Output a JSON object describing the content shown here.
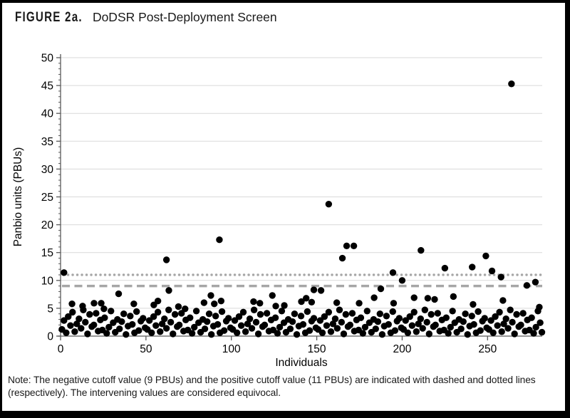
{
  "figure": {
    "label": "FIGURE 2a.",
    "title": "DoDSR Post-Deployment Screen"
  },
  "note": "Note: The negative cutoff value (9 PBUs) and the positive cutoff value (11 PBUs) are indicated with dashed and dotted lines (respectively). The intervening values are considered equivocal.",
  "colors": {
    "point": "#000000",
    "gridline": "#d9d9d9",
    "cutoff_lines": "#a6a6a6",
    "axis": "#595959",
    "text": "#000000"
  },
  "chart_data": {
    "type": "scatter",
    "title": "DoDSR Post-Deployment Screen",
    "xlabel": "Individuals",
    "ylabel": "Panbio units (PBUs)",
    "xlim": [
      0,
      282
    ],
    "ylim": [
      0,
      50
    ],
    "x_ticks": [
      0,
      50,
      100,
      150,
      200,
      250
    ],
    "y_ticks": [
      0,
      5,
      10,
      15,
      20,
      25,
      30,
      35,
      40,
      45,
      50
    ],
    "grid": "horizontal gridlines every 5 PBUs",
    "legend": "none",
    "reference_lines": [
      {
        "name": "negative-cutoff",
        "value": 9,
        "style": "dashed",
        "label": "negative cutoff (9 PBUs)"
      },
      {
        "name": "positive-cutoff",
        "value": 11,
        "style": "dotted",
        "label": "positive cutoff (11 PBUs)"
      }
    ],
    "points": [
      [
        2,
        11.4
      ],
      [
        34,
        7.6
      ],
      [
        62,
        13.7
      ],
      [
        63.4,
        8.2
      ],
      [
        88,
        7.3
      ],
      [
        93,
        17.3
      ],
      [
        124,
        7.3
      ],
      [
        143.8,
        6.8
      ],
      [
        147,
        6.1
      ],
      [
        148.3,
        8.3
      ],
      [
        152.5,
        8.2
      ],
      [
        157,
        23.7
      ],
      [
        165,
        14
      ],
      [
        167.5,
        16.2
      ],
      [
        171.7,
        16.2
      ],
      [
        183.6,
        6.9
      ],
      [
        187.5,
        8.5
      ],
      [
        194.6,
        11.4
      ],
      [
        200,
        10
      ],
      [
        207,
        6.9
      ],
      [
        211,
        15.4
      ],
      [
        215,
        6.8
      ],
      [
        219,
        6.6
      ],
      [
        225,
        12.2
      ],
      [
        230,
        7.1
      ],
      [
        241,
        12.4
      ],
      [
        249,
        14.4
      ],
      [
        252.6,
        11.7
      ],
      [
        257.9,
        10.6
      ],
      [
        264,
        45.3
      ],
      [
        273,
        9.1
      ],
      [
        278,
        9.7
      ],
      [
        6.7,
        5.8
      ],
      [
        12.9,
        5.4
      ],
      [
        19.6,
        5.9
      ],
      [
        23.8,
        5.9
      ],
      [
        25.4,
        4.9
      ],
      [
        42.9,
        5.8
      ],
      [
        54.6,
        5.6
      ],
      [
        57,
        6.3
      ],
      [
        69,
        5.3
      ],
      [
        72.9,
        4.9
      ],
      [
        84,
        6
      ],
      [
        90,
        5.8
      ],
      [
        94,
        6.3
      ],
      [
        113,
        6.2
      ],
      [
        116.7,
        5.9
      ],
      [
        126,
        5.4
      ],
      [
        131,
        5.5
      ],
      [
        141,
        6.2
      ],
      [
        161.7,
        6
      ],
      [
        174.8,
        5.9
      ],
      [
        195,
        5.9
      ],
      [
        241.5,
        5.7
      ],
      [
        259,
        6.4
      ],
      [
        280.3,
        5.2
      ],
      [
        0.8,
        1.2
      ],
      [
        2,
        2.8
      ],
      [
        3.3,
        0.6
      ],
      [
        4.5,
        3.5
      ],
      [
        5.8,
        1.9
      ],
      [
        7,
        4.3
      ],
      [
        8.3,
        0.8
      ],
      [
        9.5,
        2.2
      ],
      [
        10.8,
        3.1
      ],
      [
        12,
        1.4
      ],
      [
        13.3,
        4.7
      ],
      [
        14.5,
        2.5
      ],
      [
        15.8,
        0.4
      ],
      [
        17,
        3.9
      ],
      [
        18.3,
        1.7
      ],
      [
        19.5,
        2
      ],
      [
        20.8,
        4.1
      ],
      [
        22,
        0.9
      ],
      [
        23.3,
        2.9
      ],
      [
        24.5,
        1.1
      ],
      [
        25.8,
        3.3
      ],
      [
        27,
        0.5
      ],
      [
        28.3,
        1.6
      ],
      [
        29.5,
        4.5
      ],
      [
        30.8,
        2.4
      ],
      [
        32,
        0.7
      ],
      [
        33.3,
        3
      ],
      [
        34.5,
        1.3
      ],
      [
        35.8,
        2.6
      ],
      [
        37,
        4
      ],
      [
        38.3,
        0.3
      ],
      [
        39.5,
        1.8
      ],
      [
        40.8,
        3.6
      ],
      [
        42,
        2.1
      ],
      [
        43.3,
        0.6
      ],
      [
        44.5,
        4.4
      ],
      [
        45.8,
        1
      ],
      [
        47,
        2.7
      ],
      [
        48.3,
        3.2
      ],
      [
        49.5,
        1.5
      ],
      [
        50.8,
        1.2
      ],
      [
        52,
        2.8
      ],
      [
        53.3,
        0.6
      ],
      [
        54.5,
        3.5
      ],
      [
        55.8,
        1.9
      ],
      [
        57,
        4.3
      ],
      [
        58.3,
        0.8
      ],
      [
        59.5,
        2.2
      ],
      [
        60.8,
        3.1
      ],
      [
        62,
        1.4
      ],
      [
        63.3,
        4.7
      ],
      [
        64.5,
        2.5
      ],
      [
        65.8,
        0.4
      ],
      [
        67,
        3.9
      ],
      [
        68.3,
        1.7
      ],
      [
        69.5,
        2
      ],
      [
        70.8,
        4.1
      ],
      [
        72,
        0.9
      ],
      [
        73.3,
        2.9
      ],
      [
        74.5,
        1.1
      ],
      [
        75.8,
        3.3
      ],
      [
        77,
        0.5
      ],
      [
        78.3,
        1.6
      ],
      [
        79.5,
        4.5
      ],
      [
        80.8,
        2.4
      ],
      [
        82,
        0.7
      ],
      [
        83.3,
        3
      ],
      [
        84.5,
        1.3
      ],
      [
        85.8,
        2.6
      ],
      [
        87,
        4
      ],
      [
        88.3,
        0.3
      ],
      [
        89.5,
        1.8
      ],
      [
        90.8,
        3.6
      ],
      [
        92,
        2.1
      ],
      [
        93.3,
        0.6
      ],
      [
        94.5,
        4.4
      ],
      [
        95.8,
        1
      ],
      [
        97,
        2.7
      ],
      [
        98.3,
        3.2
      ],
      [
        99.5,
        1.5
      ],
      [
        100.8,
        1.2
      ],
      [
        102,
        2.8
      ],
      [
        103.3,
        0.6
      ],
      [
        104.5,
        3.5
      ],
      [
        105.8,
        1.9
      ],
      [
        107,
        4.3
      ],
      [
        108.3,
        0.8
      ],
      [
        109.5,
        2.2
      ],
      [
        110.8,
        3.1
      ],
      [
        112,
        1.4
      ],
      [
        113.3,
        4.7
      ],
      [
        114.5,
        2.5
      ],
      [
        115.8,
        0.4
      ],
      [
        117,
        3.9
      ],
      [
        118.3,
        1.7
      ],
      [
        119.5,
        2
      ],
      [
        120.8,
        4.1
      ],
      [
        122,
        0.9
      ],
      [
        123.3,
        2.9
      ],
      [
        124.5,
        1.1
      ],
      [
        125.8,
        3.3
      ],
      [
        127,
        0.5
      ],
      [
        128.3,
        1.6
      ],
      [
        129.5,
        4.5
      ],
      [
        130.8,
        2.4
      ],
      [
        132,
        0.7
      ],
      [
        133.3,
        3
      ],
      [
        134.5,
        1.3
      ],
      [
        135.8,
        2.6
      ],
      [
        137,
        4
      ],
      [
        138.3,
        0.3
      ],
      [
        139.5,
        1.8
      ],
      [
        140.8,
        3.6
      ],
      [
        142,
        2.1
      ],
      [
        143.3,
        0.6
      ],
      [
        144.5,
        4.4
      ],
      [
        145.8,
        1
      ],
      [
        147,
        2.7
      ],
      [
        148.3,
        3.2
      ],
      [
        149.5,
        1.5
      ],
      [
        150.8,
        1.2
      ],
      [
        152,
        2.8
      ],
      [
        153.3,
        0.6
      ],
      [
        154.5,
        3.5
      ],
      [
        155.8,
        1.9
      ],
      [
        157,
        4.3
      ],
      [
        158.3,
        0.8
      ],
      [
        159.5,
        2.2
      ],
      [
        160.8,
        3.1
      ],
      [
        162,
        1.4
      ],
      [
        163.3,
        4.7
      ],
      [
        164.5,
        2.5
      ],
      [
        165.8,
        0.4
      ],
      [
        167,
        3.9
      ],
      [
        168.3,
        1.7
      ],
      [
        169.5,
        2
      ],
      [
        170.8,
        4.1
      ],
      [
        172,
        0.9
      ],
      [
        173.3,
        2.9
      ],
      [
        174.5,
        1.1
      ],
      [
        175.8,
        3.3
      ],
      [
        177,
        0.5
      ],
      [
        178.3,
        1.6
      ],
      [
        179.5,
        4.5
      ],
      [
        180.8,
        2.4
      ],
      [
        182,
        0.7
      ],
      [
        183.3,
        3
      ],
      [
        184.5,
        1.3
      ],
      [
        185.8,
        2.6
      ],
      [
        187,
        4
      ],
      [
        188.3,
        0.3
      ],
      [
        189.5,
        1.8
      ],
      [
        190.8,
        3.6
      ],
      [
        192,
        2.1
      ],
      [
        193.3,
        0.6
      ],
      [
        194.5,
        4.4
      ],
      [
        195.8,
        1
      ],
      [
        197,
        2.7
      ],
      [
        198.3,
        3.2
      ],
      [
        199.5,
        1.5
      ],
      [
        200.8,
        1.2
      ],
      [
        202,
        2.8
      ],
      [
        203.3,
        0.6
      ],
      [
        204.5,
        3.5
      ],
      [
        205.8,
        1.9
      ],
      [
        207,
        4.3
      ],
      [
        208.3,
        0.8
      ],
      [
        209.5,
        2.2
      ],
      [
        210.8,
        3.1
      ],
      [
        212,
        1.4
      ],
      [
        213.3,
        4.7
      ],
      [
        214.5,
        2.5
      ],
      [
        215.8,
        0.4
      ],
      [
        217,
        3.9
      ],
      [
        218.3,
        1.7
      ],
      [
        219.5,
        2
      ],
      [
        220.8,
        4.1
      ],
      [
        222,
        0.9
      ],
      [
        223.3,
        2.9
      ],
      [
        224.5,
        1.1
      ],
      [
        225.8,
        3.3
      ],
      [
        227,
        0.5
      ],
      [
        228.3,
        1.6
      ],
      [
        229.5,
        4.5
      ],
      [
        230.8,
        2.4
      ],
      [
        232,
        0.7
      ],
      [
        233.3,
        3
      ],
      [
        234.5,
        1.3
      ],
      [
        235.8,
        2.6
      ],
      [
        237,
        4
      ],
      [
        238.3,
        0.3
      ],
      [
        239.5,
        1.8
      ],
      [
        240.8,
        3.6
      ],
      [
        242,
        2.1
      ],
      [
        243.3,
        0.6
      ],
      [
        244.5,
        4.4
      ],
      [
        245.8,
        1
      ],
      [
        247,
        2.7
      ],
      [
        248.3,
        3.2
      ],
      [
        249.5,
        1.5
      ],
      [
        250.8,
        1.2
      ],
      [
        252,
        2.8
      ],
      [
        253.3,
        0.6
      ],
      [
        254.5,
        3.5
      ],
      [
        255.8,
        1.9
      ],
      [
        257,
        4.3
      ],
      [
        258.3,
        0.8
      ],
      [
        259.5,
        2.2
      ],
      [
        260.8,
        3.1
      ],
      [
        262,
        1.4
      ],
      [
        263.3,
        4.7
      ],
      [
        264.5,
        2.5
      ],
      [
        265.8,
        0.4
      ],
      [
        267,
        3.9
      ],
      [
        268.3,
        1.7
      ],
      [
        269.5,
        2
      ],
      [
        270.8,
        4.1
      ],
      [
        272,
        0.9
      ],
      [
        273.3,
        2.9
      ],
      [
        274.5,
        1.1
      ],
      [
        275.8,
        3.3
      ],
      [
        277,
        0.5
      ],
      [
        278.3,
        1.6
      ],
      [
        279.5,
        4.5
      ],
      [
        280.8,
        2.4
      ],
      [
        281.8,
        0.7
      ]
    ]
  }
}
